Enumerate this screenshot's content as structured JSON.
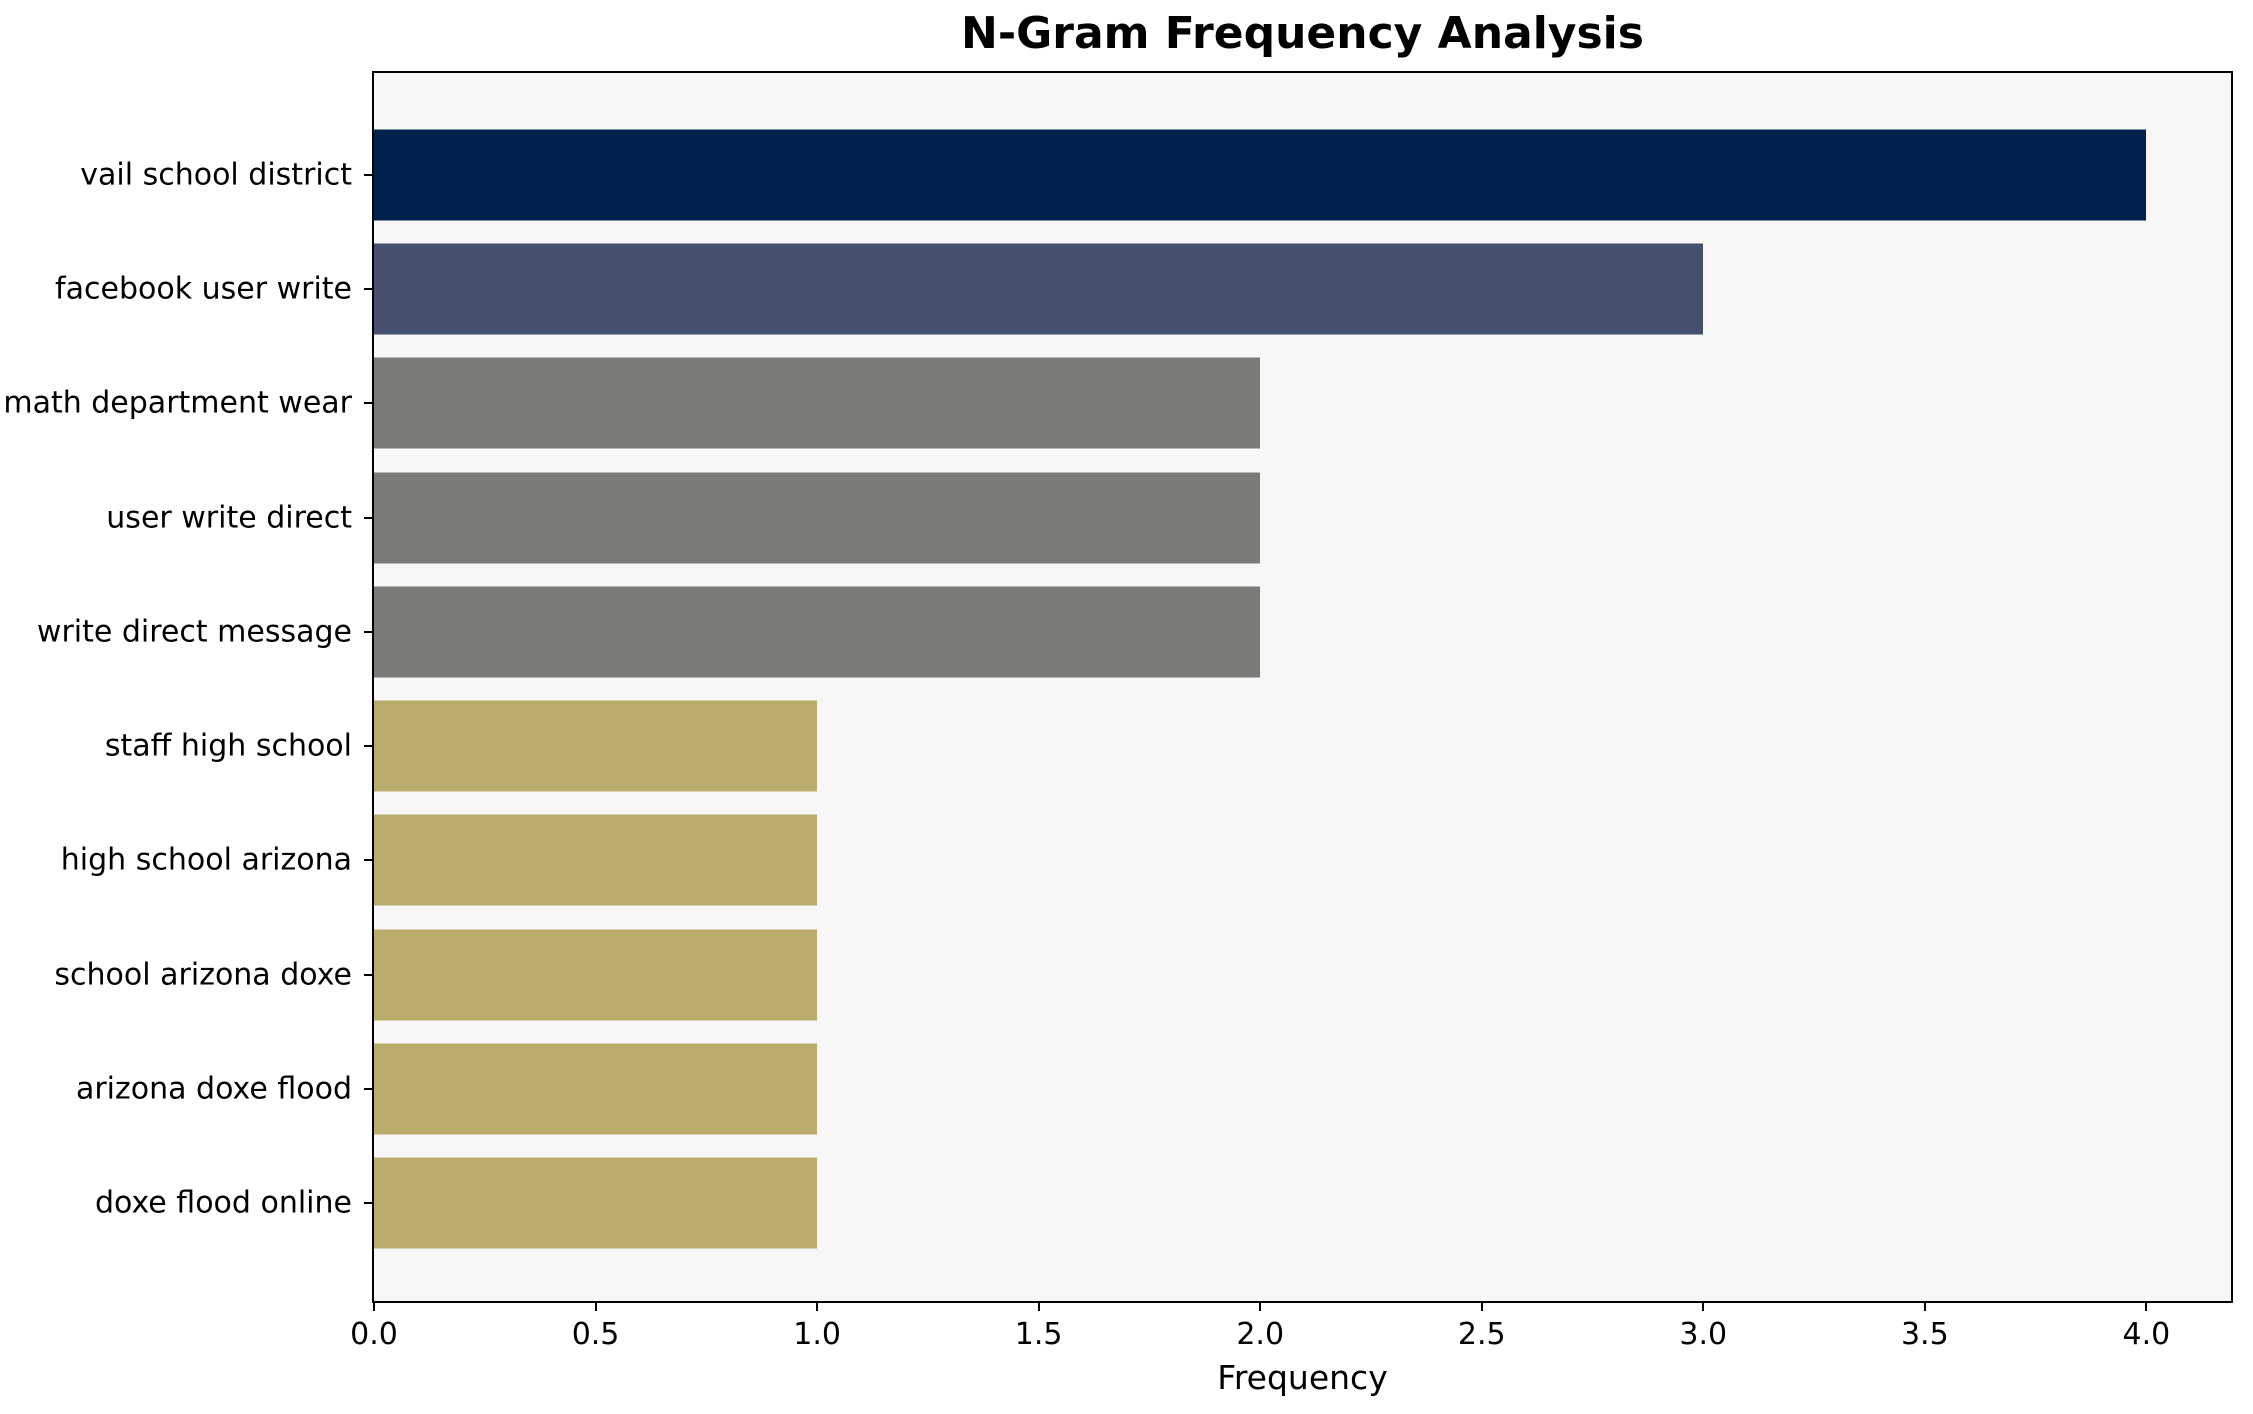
{
  "chart_data": {
    "type": "bar",
    "orientation": "horizontal",
    "title": "N-Gram Frequency Analysis",
    "xlabel": "Frequency",
    "ylabel": "",
    "categories": [
      "vail school district",
      "facebook user write",
      "math department wear",
      "user write direct",
      "write direct message",
      "staff high school",
      "high school arizona",
      "school arizona doxe",
      "arizona doxe flood",
      "doxe flood online"
    ],
    "values": [
      4,
      3,
      2,
      2,
      2,
      1,
      1,
      1,
      1,
      1
    ],
    "bar_colors": [
      "#00224d",
      "#454f6e",
      "#7b7a76",
      "#7b7a76",
      "#7b7a76",
      "#b9ac6c",
      "#b9ac6c",
      "#b9ac6c",
      "#b9ac6c",
      "#b9ac6c"
    ],
    "xlim": [
      0,
      4.2
    ],
    "xticks": [
      {
        "value": 0.0,
        "label": "0.0"
      },
      {
        "value": 0.5,
        "label": "0.5"
      },
      {
        "value": 1.0,
        "label": "1.0"
      },
      {
        "value": 1.5,
        "label": "1.5"
      },
      {
        "value": 2.0,
        "label": "2.0"
      },
      {
        "value": 2.5,
        "label": "2.5"
      },
      {
        "value": 3.0,
        "label": "3.0"
      },
      {
        "value": 3.5,
        "label": "3.5"
      },
      {
        "value": 4.0,
        "label": "4.0"
      }
    ],
    "grid": false,
    "legend": null,
    "plot_background": "#f7f7f8",
    "figure_background": "#ffffff",
    "axis_color": "#000000"
  }
}
